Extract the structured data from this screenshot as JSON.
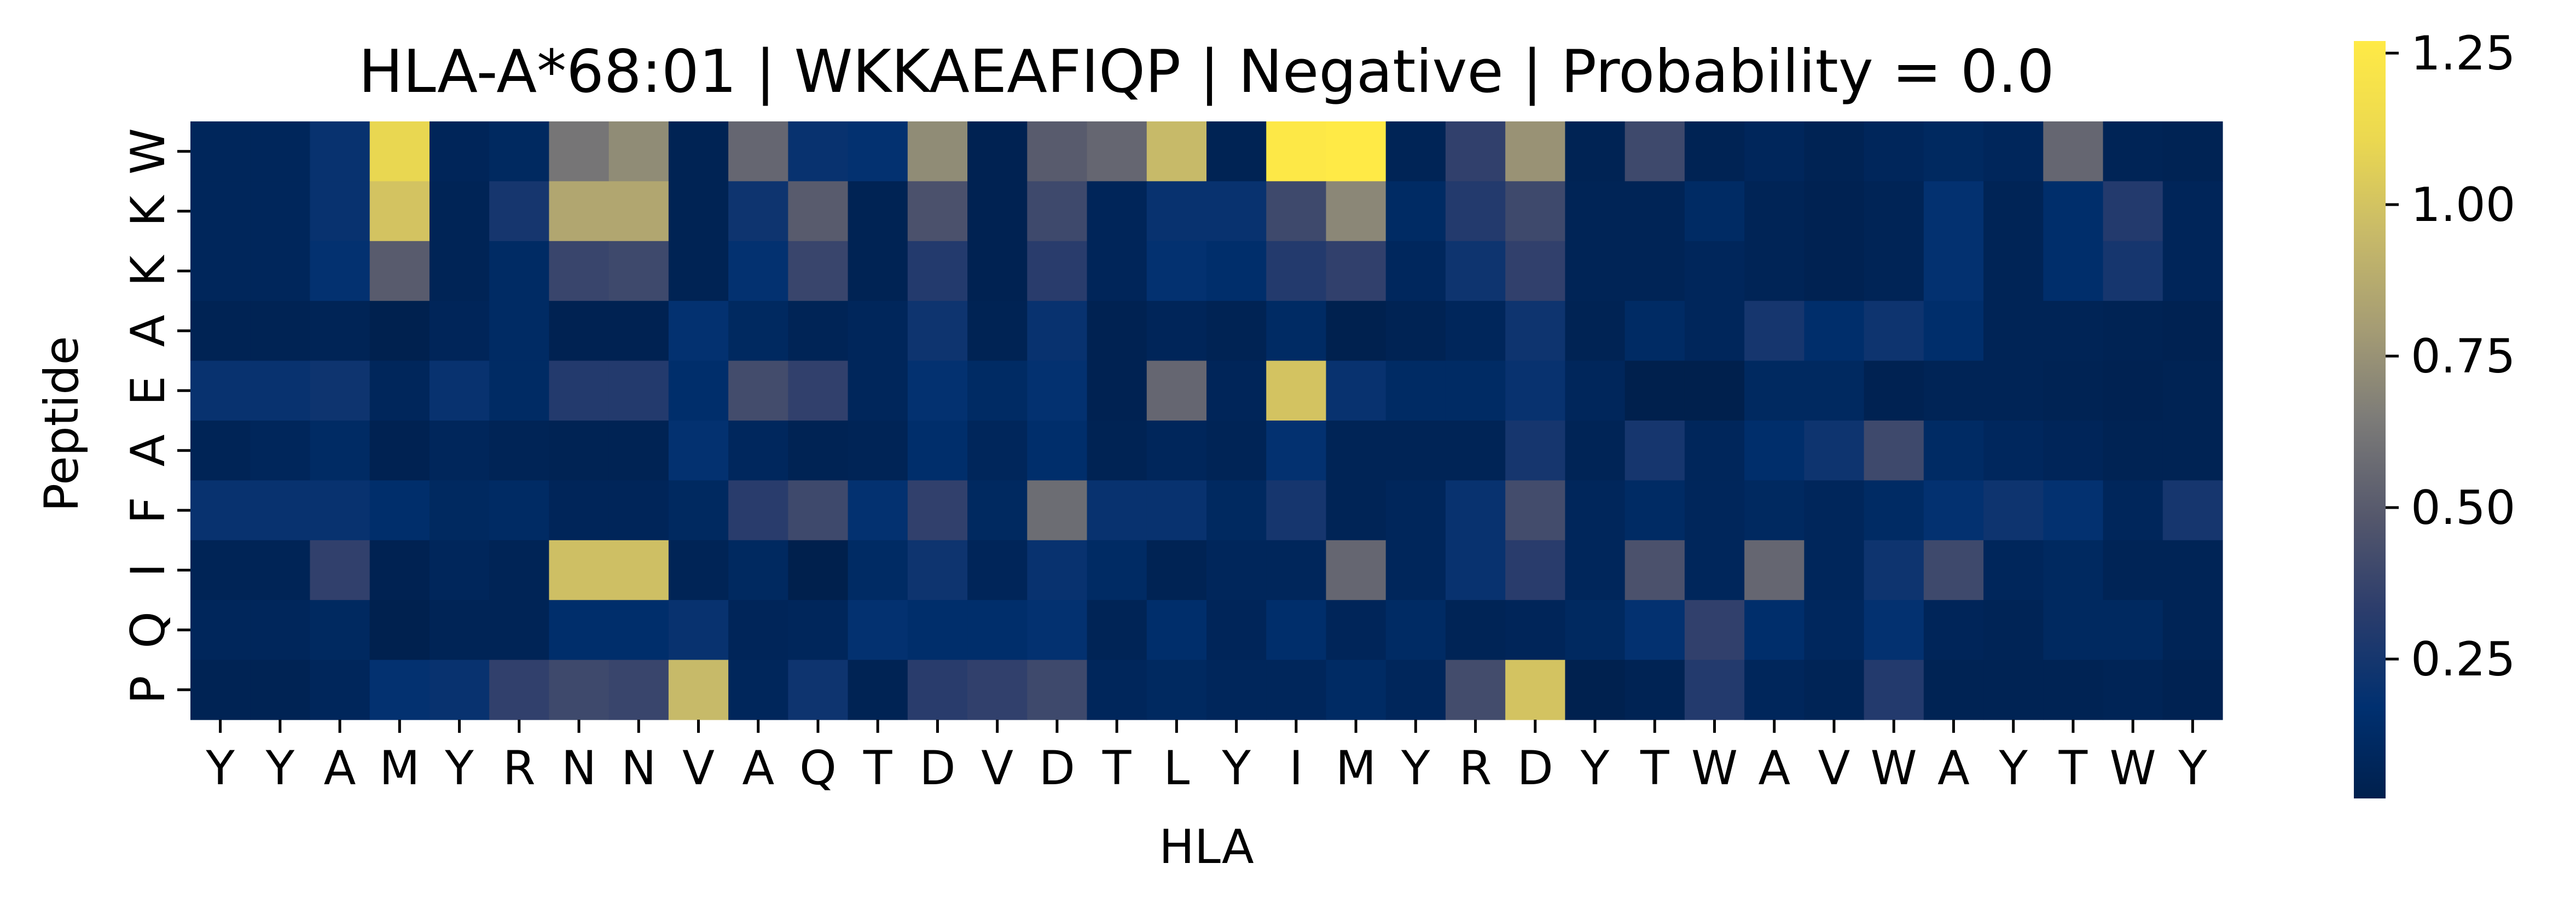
{
  "chart_data": {
    "type": "heatmap",
    "title": "HLA-A*68:01 | WKKAEAFIQP | Negative | Probability = 0.0",
    "xlabel": "HLA",
    "ylabel": "Peptide",
    "x_categories": [
      "Y",
      "Y",
      "A",
      "M",
      "Y",
      "R",
      "N",
      "N",
      "V",
      "A",
      "Q",
      "T",
      "D",
      "V",
      "D",
      "T",
      "L",
      "Y",
      "I",
      "M",
      "Y",
      "R",
      "D",
      "Y",
      "T",
      "W",
      "A",
      "V",
      "W",
      "A",
      "Y",
      "T",
      "W",
      "Y"
    ],
    "y_categories": [
      "W",
      "K",
      "K",
      "A",
      "E",
      "A",
      "F",
      "I",
      "Q",
      "P"
    ],
    "colorbar": {
      "colormap": "cividis",
      "vmin": 0.02,
      "vmax": 1.27,
      "ticks": [
        0.25,
        0.5,
        0.75,
        1.0,
        1.25
      ],
      "tick_labels": [
        "0.25",
        "0.50",
        "0.75",
        "1.00",
        "1.25"
      ]
    },
    "values": [
      [
        0.08,
        0.08,
        0.2,
        1.1,
        0.07,
        0.1,
        0.62,
        0.72,
        0.05,
        0.55,
        0.2,
        0.18,
        0.72,
        0.04,
        0.5,
        0.55,
        0.95,
        0.05,
        1.25,
        1.27,
        0.06,
        0.35,
        0.75,
        0.05,
        0.4,
        0.05,
        0.08,
        0.05,
        0.08,
        0.1,
        0.08,
        0.55,
        0.06,
        0.05
      ],
      [
        0.08,
        0.08,
        0.2,
        1.0,
        0.06,
        0.25,
        0.85,
        0.85,
        0.05,
        0.22,
        0.5,
        0.05,
        0.45,
        0.04,
        0.4,
        0.07,
        0.2,
        0.2,
        0.4,
        0.7,
        0.12,
        0.3,
        0.4,
        0.06,
        0.06,
        0.12,
        0.06,
        0.04,
        0.06,
        0.18,
        0.06,
        0.15,
        0.3,
        0.07
      ],
      [
        0.08,
        0.08,
        0.18,
        0.5,
        0.06,
        0.12,
        0.38,
        0.4,
        0.05,
        0.18,
        0.38,
        0.05,
        0.3,
        0.04,
        0.32,
        0.07,
        0.18,
        0.15,
        0.3,
        0.35,
        0.09,
        0.22,
        0.35,
        0.06,
        0.06,
        0.08,
        0.06,
        0.04,
        0.06,
        0.18,
        0.06,
        0.15,
        0.25,
        0.07
      ],
      [
        0.05,
        0.05,
        0.06,
        0.03,
        0.07,
        0.12,
        0.04,
        0.04,
        0.18,
        0.1,
        0.06,
        0.08,
        0.22,
        0.05,
        0.2,
        0.04,
        0.07,
        0.05,
        0.12,
        0.03,
        0.05,
        0.08,
        0.22,
        0.05,
        0.12,
        0.08,
        0.25,
        0.15,
        0.22,
        0.15,
        0.06,
        0.06,
        0.05,
        0.04
      ],
      [
        0.2,
        0.2,
        0.22,
        0.08,
        0.2,
        0.12,
        0.3,
        0.3,
        0.15,
        0.42,
        0.35,
        0.08,
        0.18,
        0.12,
        0.18,
        0.04,
        0.55,
        0.07,
        1.0,
        0.2,
        0.12,
        0.12,
        0.2,
        0.08,
        0.02,
        0.02,
        0.1,
        0.1,
        0.04,
        0.06,
        0.06,
        0.05,
        0.04,
        0.05
      ],
      [
        0.06,
        0.08,
        0.12,
        0.04,
        0.08,
        0.06,
        0.05,
        0.05,
        0.18,
        0.09,
        0.05,
        0.06,
        0.15,
        0.08,
        0.15,
        0.05,
        0.08,
        0.06,
        0.18,
        0.06,
        0.06,
        0.06,
        0.25,
        0.06,
        0.25,
        0.08,
        0.15,
        0.22,
        0.4,
        0.12,
        0.09,
        0.07,
        0.05,
        0.05
      ],
      [
        0.2,
        0.2,
        0.2,
        0.15,
        0.1,
        0.12,
        0.07,
        0.07,
        0.1,
        0.32,
        0.4,
        0.18,
        0.35,
        0.1,
        0.58,
        0.2,
        0.2,
        0.1,
        0.25,
        0.06,
        0.08,
        0.2,
        0.42,
        0.08,
        0.12,
        0.08,
        0.1,
        0.08,
        0.12,
        0.18,
        0.22,
        0.18,
        0.08,
        0.25
      ],
      [
        0.06,
        0.06,
        0.35,
        0.04,
        0.08,
        0.06,
        0.98,
        0.98,
        0.06,
        0.1,
        0.02,
        0.12,
        0.22,
        0.07,
        0.2,
        0.12,
        0.05,
        0.08,
        0.08,
        0.55,
        0.08,
        0.2,
        0.32,
        0.08,
        0.45,
        0.08,
        0.55,
        0.08,
        0.22,
        0.4,
        0.08,
        0.1,
        0.06,
        0.06
      ],
      [
        0.08,
        0.08,
        0.1,
        0.03,
        0.06,
        0.06,
        0.15,
        0.15,
        0.2,
        0.07,
        0.08,
        0.18,
        0.15,
        0.15,
        0.18,
        0.06,
        0.15,
        0.07,
        0.15,
        0.07,
        0.12,
        0.06,
        0.07,
        0.1,
        0.18,
        0.35,
        0.15,
        0.09,
        0.18,
        0.07,
        0.06,
        0.1,
        0.1,
        0.06
      ],
      [
        0.05,
        0.05,
        0.08,
        0.18,
        0.2,
        0.35,
        0.4,
        0.38,
        0.95,
        0.08,
        0.22,
        0.05,
        0.32,
        0.35,
        0.4,
        0.08,
        0.1,
        0.08,
        0.08,
        0.12,
        0.08,
        0.42,
        1.0,
        0.03,
        0.05,
        0.3,
        0.08,
        0.06,
        0.3,
        0.05,
        0.05,
        0.05,
        0.06,
        0.04
      ]
    ]
  }
}
